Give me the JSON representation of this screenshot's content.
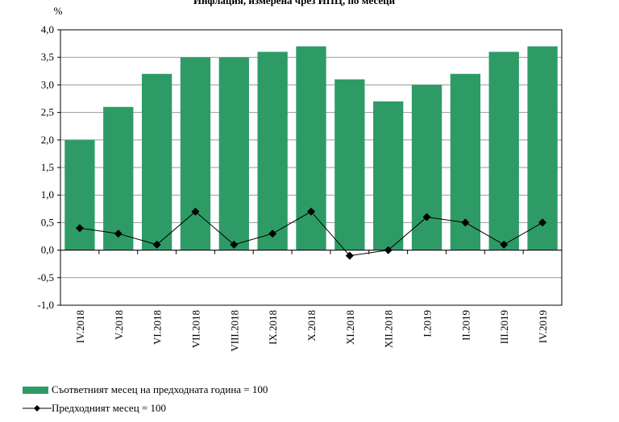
{
  "chart_data": {
    "type": "bar",
    "title": "Инфлация, измерена чрез ИПЦ, по месеци",
    "ylabel": "%",
    "ylim": [
      -1.0,
      4.0
    ],
    "yticks": [
      "4,0",
      "3,5",
      "3,0",
      "2,5",
      "2,0",
      "1,5",
      "1,0",
      "0,5",
      "0,0",
      "-0,5",
      "-1,0"
    ],
    "ytick_values": [
      4.0,
      3.5,
      3.0,
      2.5,
      2.0,
      1.5,
      1.0,
      0.5,
      0.0,
      -0.5,
      -1.0
    ],
    "grid": true,
    "legend_position": "bottom-left",
    "categories": [
      "IV.2018",
      "V.2018",
      "VI.2018",
      "VII.2018",
      "VIII.2018",
      "IX.2018",
      "X.2018",
      "XI.2018",
      "XII.2018",
      "I.2019",
      "II.2019",
      "III.2019",
      "IV.2019"
    ],
    "series": [
      {
        "name": "Съответният месец на предходната година = 100",
        "kind": "bar",
        "color": "#2e9b67",
        "values": [
          2.0,
          2.6,
          3.2,
          3.5,
          3.5,
          3.6,
          3.7,
          3.1,
          2.7,
          3.0,
          3.2,
          3.6,
          3.7
        ]
      },
      {
        "name": "Предходният месец = 100",
        "kind": "line",
        "color": "#000000",
        "marker": "diamond",
        "values": [
          0.4,
          0.3,
          0.1,
          0.7,
          0.1,
          0.3,
          0.7,
          -0.1,
          0.0,
          0.6,
          0.5,
          0.1,
          0.5
        ]
      }
    ]
  }
}
